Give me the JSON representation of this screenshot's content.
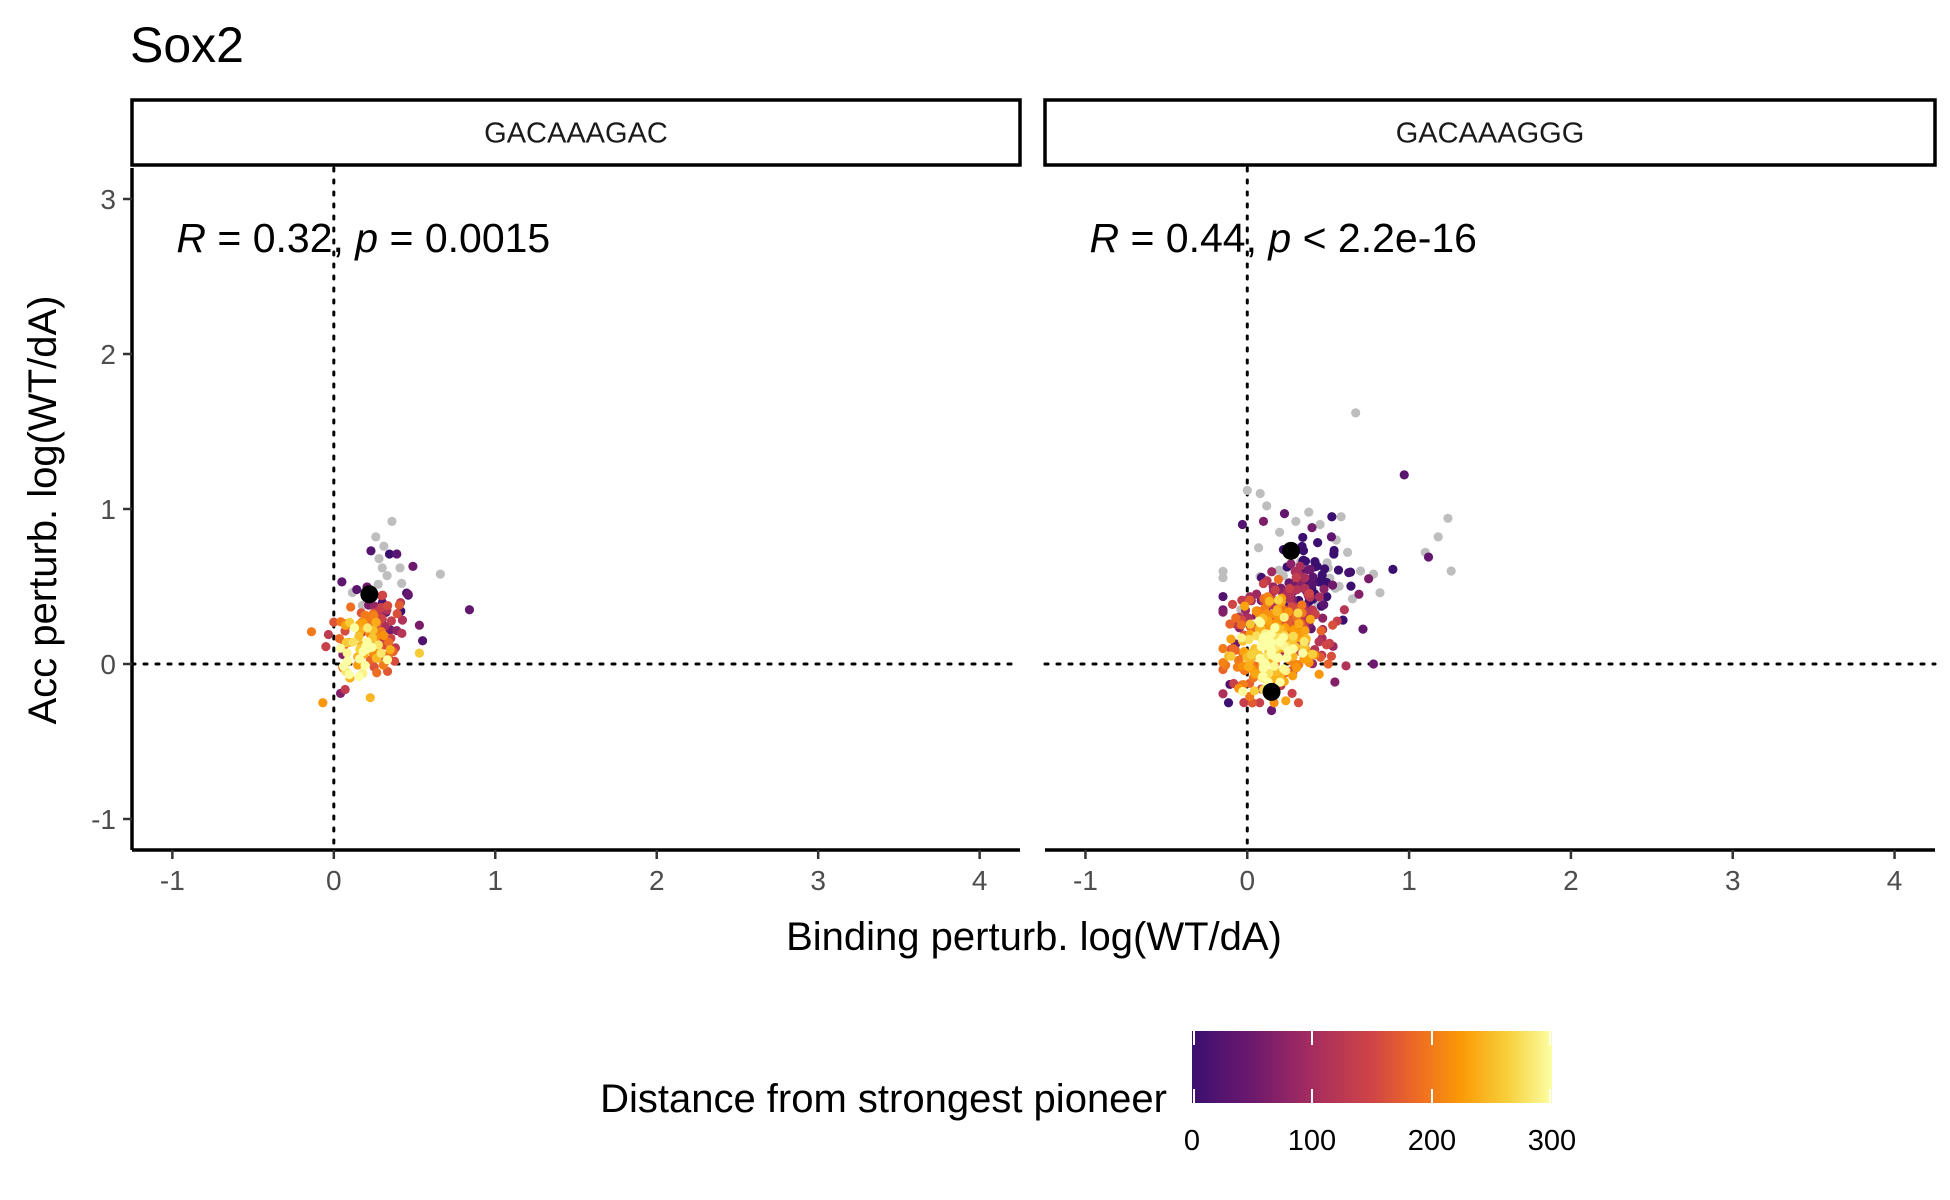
{
  "title": "Sox2",
  "chart_data": {
    "type": "scatter",
    "xlabel": "Binding perturb. log(WT/dA)",
    "ylabel": "Acc perturb. log(WT/dA)",
    "xlim": [
      -1.25,
      4.25
    ],
    "ylim": [
      -1.2,
      3.2
    ],
    "xticks": [
      "-1",
      "0",
      "1",
      "2",
      "3",
      "4"
    ],
    "yticks": [
      "-1",
      "0",
      "1",
      "2",
      "3"
    ],
    "grid": false,
    "reference_lines": {
      "x": 0,
      "y": 0,
      "style": "dotted"
    },
    "color_scale": {
      "title": "Distance from strongest pioneer",
      "palette": "inferno",
      "min": 0,
      "max": 300,
      "ticks": [
        "0",
        "100",
        "200",
        "300"
      ],
      "na_color": "#bebebe",
      "legend_position": "bottom"
    },
    "panels": [
      {
        "strip": "GACAAAGAC",
        "stat": {
          "R": "0.32",
          "p_op": "=",
          "p": "0.0015"
        },
        "highlight_points": [
          {
            "x": 0.22,
            "y": 0.45
          }
        ],
        "cloud": {
          "n": 140,
          "x_center": 0.22,
          "x_spread": 0.12,
          "y_center": 0.18,
          "y_spread": 0.14
        },
        "points": [
          {
            "x": 0.26,
            "y": 0.82,
            "d": null
          },
          {
            "x": 0.36,
            "y": 0.92,
            "d": null
          },
          {
            "x": 0.31,
            "y": 0.76,
            "d": null
          },
          {
            "x": 0.41,
            "y": 0.62,
            "d": null
          },
          {
            "x": 0.66,
            "y": 0.58,
            "d": null
          },
          {
            "x": 0.28,
            "y": 0.68,
            "d": null
          },
          {
            "x": 0.42,
            "y": 0.52,
            "d": null
          },
          {
            "x": 0.33,
            "y": 0.57,
            "d": null
          },
          {
            "x": 0.84,
            "y": 0.35,
            "d": 40
          },
          {
            "x": 0.39,
            "y": 0.71,
            "d": 30
          },
          {
            "x": 0.23,
            "y": 0.73,
            "d": 25
          },
          {
            "x": 0.05,
            "y": 0.53,
            "d": 35
          },
          {
            "x": 0.49,
            "y": 0.63,
            "d": 50
          },
          {
            "x": 0.53,
            "y": 0.25,
            "d": 60
          },
          {
            "x": 0.55,
            "y": 0.15,
            "d": 20
          },
          {
            "x": 0.46,
            "y": 0.45,
            "d": 45
          },
          {
            "x": 0.53,
            "y": 0.07,
            "d": 260
          },
          {
            "x": 0.1,
            "y": -0.09,
            "d": 240
          },
          {
            "x": 0.18,
            "y": -0.06,
            "d": 290
          },
          {
            "x": 0.35,
            "y": 0.22,
            "d": 55
          }
        ]
      },
      {
        "strip": "GACAAAGGG",
        "stat": {
          "R": "0.44",
          "p_op": "<",
          "p": "2.2e-16"
        },
        "highlight_points": [
          {
            "x": 0.27,
            "y": 0.73
          },
          {
            "x": 0.15,
            "y": -0.18
          }
        ],
        "cloud": {
          "n": 480,
          "x_center": 0.22,
          "x_spread": 0.17,
          "y_center": 0.23,
          "y_spread": 0.2
        },
        "points": [
          {
            "x": 0.67,
            "y": 1.62,
            "d": null
          },
          {
            "x": 1.24,
            "y": 0.94,
            "d": null
          },
          {
            "x": 1.18,
            "y": 0.82,
            "d": null
          },
          {
            "x": 1.26,
            "y": 0.6,
            "d": null
          },
          {
            "x": 1.1,
            "y": 0.72,
            "d": null
          },
          {
            "x": 0.82,
            "y": 0.46,
            "d": null
          },
          {
            "x": 0.78,
            "y": 0.58,
            "d": null
          },
          {
            "x": -0.04,
            "y": 0.35,
            "d": null
          },
          {
            "x": 0.0,
            "y": 1.12,
            "d": null
          },
          {
            "x": 0.08,
            "y": 1.1,
            "d": null
          },
          {
            "x": 0.12,
            "y": 1.02,
            "d": null
          },
          {
            "x": 0.3,
            "y": 0.92,
            "d": null
          },
          {
            "x": 0.45,
            "y": 0.9,
            "d": null
          },
          {
            "x": 0.55,
            "y": 0.8,
            "d": null
          },
          {
            "x": 0.38,
            "y": 0.98,
            "d": null
          },
          {
            "x": 0.62,
            "y": 0.72,
            "d": null
          },
          {
            "x": 0.5,
            "y": 0.62,
            "d": null
          },
          {
            "x": 0.7,
            "y": 0.6,
            "d": null
          },
          {
            "x": 0.2,
            "y": 0.85,
            "d": null
          },
          {
            "x": 0.58,
            "y": 0.95,
            "d": null
          },
          {
            "x": 0.42,
            "y": 0.55,
            "d": null
          },
          {
            "x": 0.65,
            "y": 0.42,
            "d": null
          },
          {
            "x": 0.33,
            "y": 0.66,
            "d": null
          },
          {
            "x": 0.07,
            "y": 0.75,
            "d": null
          },
          {
            "x": 0.97,
            "y": 1.22,
            "d": 30
          },
          {
            "x": 1.12,
            "y": 0.69,
            "d": 40
          },
          {
            "x": 0.78,
            "y": 0.0,
            "d": 50
          },
          {
            "x": 0.75,
            "y": 0.55,
            "d": 60
          },
          {
            "x": 0.69,
            "y": 0.45,
            "d": 70
          },
          {
            "x": 0.15,
            "y": -0.3,
            "d": 45
          },
          {
            "x": -0.03,
            "y": 0.9,
            "d": 25
          },
          {
            "x": 0.52,
            "y": 0.82,
            "d": 35
          },
          {
            "x": 0.4,
            "y": 0.88,
            "d": 55
          },
          {
            "x": 0.6,
            "y": 0.35,
            "d": 120
          },
          {
            "x": 0.52,
            "y": 0.05,
            "d": 160
          },
          {
            "x": 0.5,
            "y": 0.0,
            "d": 180
          },
          {
            "x": -0.1,
            "y": 0.05,
            "d": 260
          },
          {
            "x": -0.15,
            "y": 0.1,
            "d": 200
          },
          {
            "x": 0.23,
            "y": 0.97,
            "d": 40
          },
          {
            "x": 0.1,
            "y": 0.92,
            "d": 65
          }
        ]
      }
    ]
  }
}
